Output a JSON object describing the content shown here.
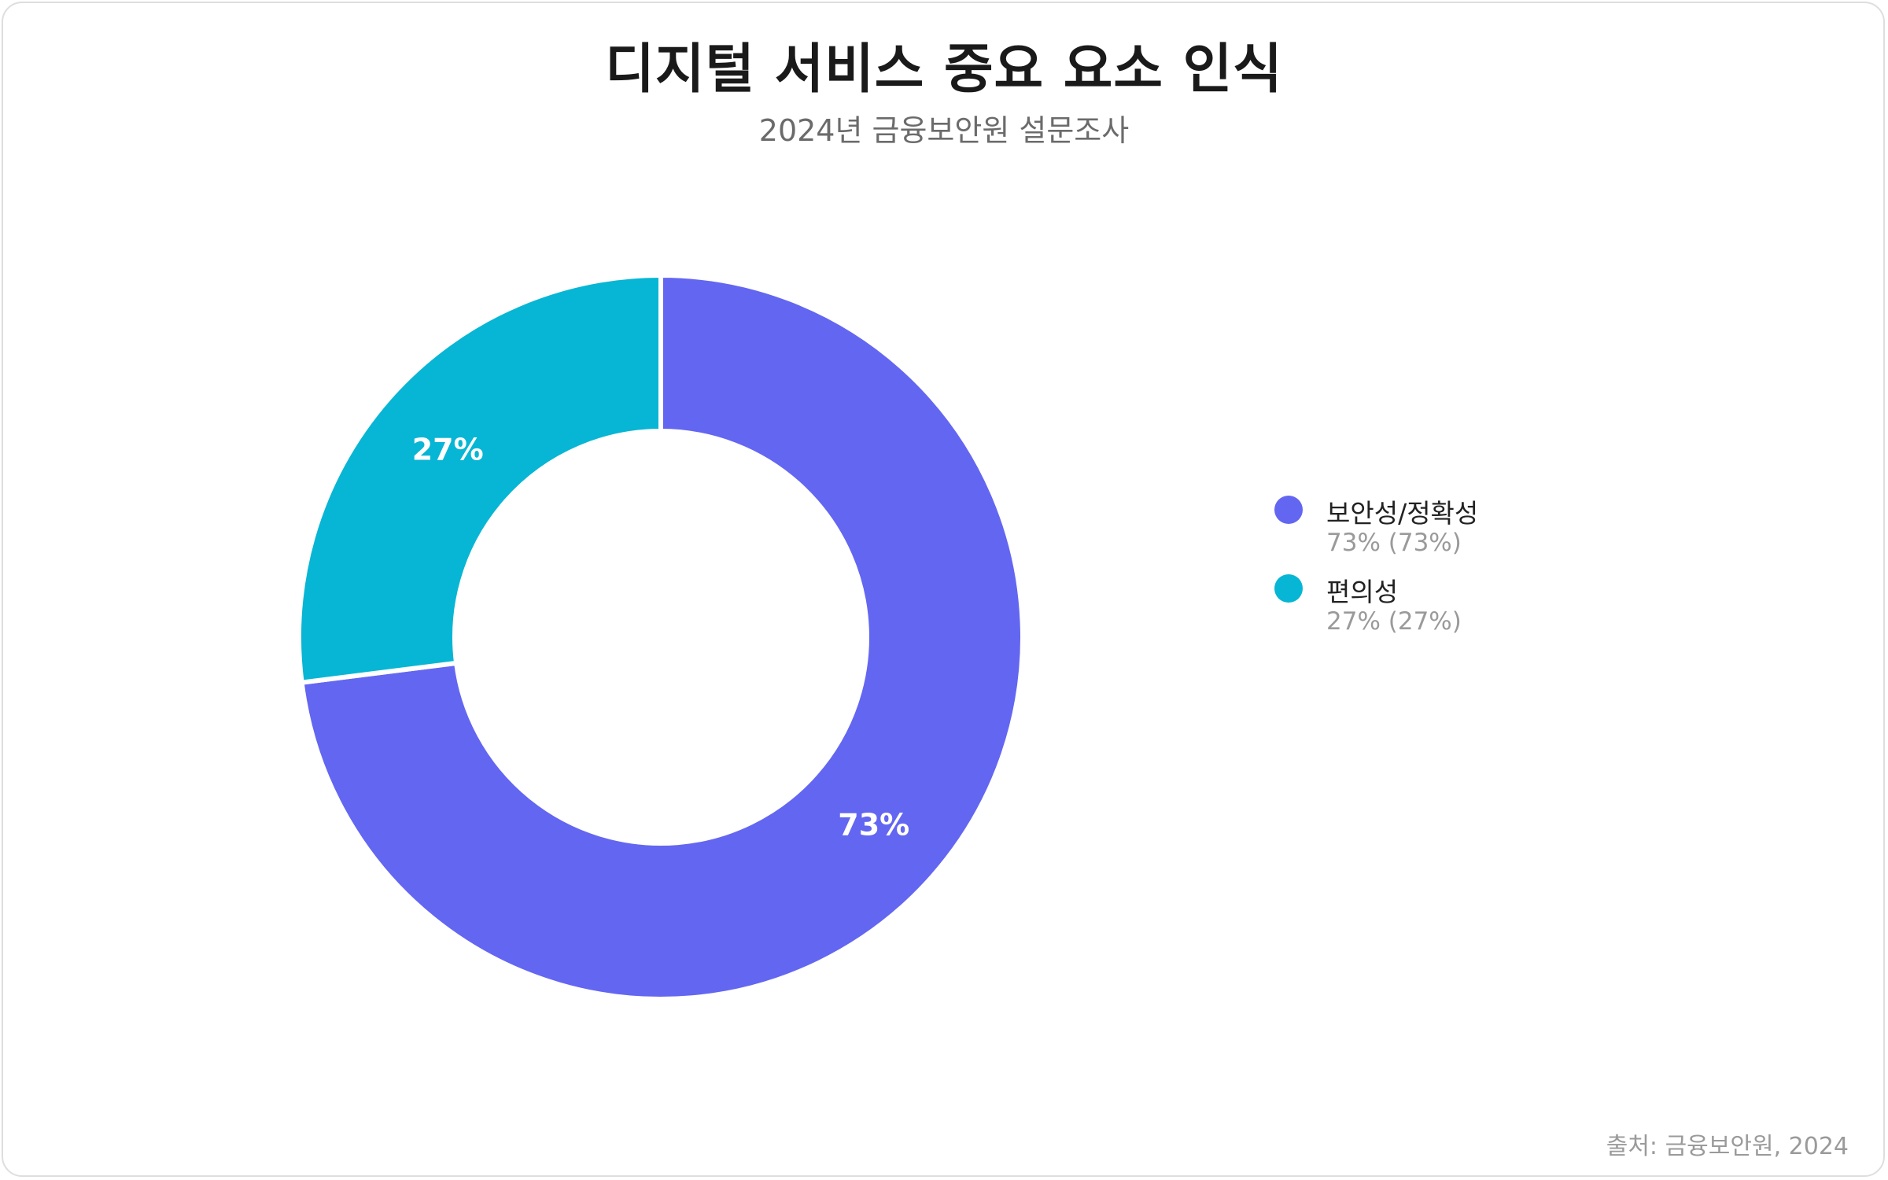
{
  "chart_data": {
    "type": "pie",
    "title": "디지털 서비스 중요 요소 인식",
    "subtitle": "2024년 금융보안원 설문조사",
    "source": "출처: 금융보안원, 2024",
    "legend_position": "right",
    "slices": [
      {
        "label": "보안성/정확성",
        "value": 73,
        "value_label": "73%",
        "legend_value": "73% (73%)",
        "color": "#6366F1"
      },
      {
        "label": "편의성",
        "value": 27,
        "value_label": "27%",
        "legend_value": "27% (27%)",
        "color": "#06B6D4"
      }
    ]
  }
}
